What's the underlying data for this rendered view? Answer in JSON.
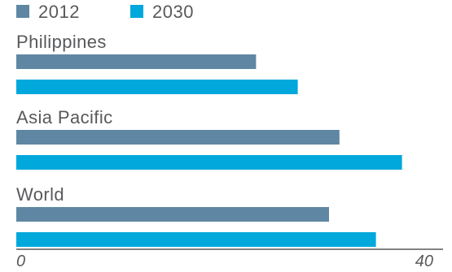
{
  "chart_data": {
    "type": "bar",
    "orientation": "horizontal",
    "categories": [
      "Philippines",
      "Asia Pacific",
      "World"
    ],
    "series": [
      {
        "name": "2012",
        "color": "#5f87a3",
        "values": [
          23,
          31,
          30
        ]
      },
      {
        "name": "2030",
        "color": "#00a8dc",
        "values": [
          27,
          37,
          34.5
        ]
      }
    ],
    "xlim": [
      0,
      40
    ],
    "xticks": [
      "0",
      "40"
    ],
    "legend_position": "top-left",
    "grid": false
  }
}
